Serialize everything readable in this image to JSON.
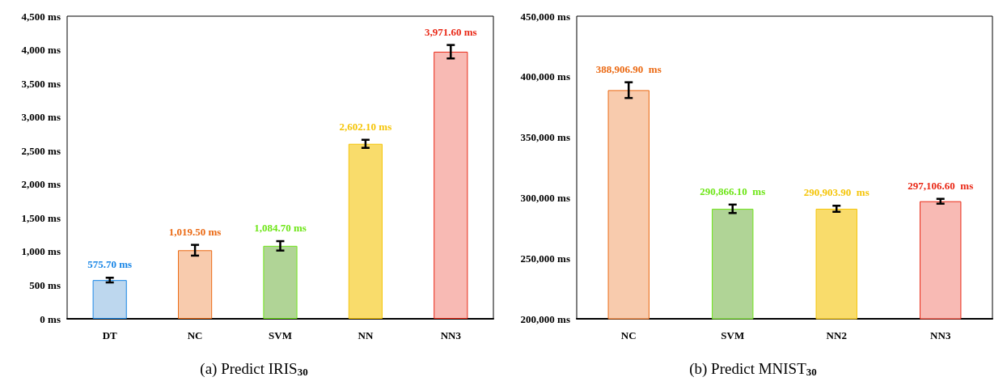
{
  "chart_data": [
    {
      "type": "bar",
      "title": "(a) Predict IRIS$_{30}$",
      "categories": [
        "DT",
        "NC",
        "SVM",
        "NN",
        "NN3"
      ],
      "values": [
        575.7,
        1019.5,
        1084.7,
        2602.1,
        3971.6
      ],
      "colors": [
        "#bdd7ee",
        "#f8cbad",
        "#b0d496",
        "#f9dc6b",
        "#f8bab4"
      ],
      "errors": [
        35,
        80,
        70,
        60,
        100
      ],
      "value_labels": [
        "575.70 ms",
        "1,019.50 ms",
        "1,084.70 ms",
        "2,602.10 ms",
        "3,971.60 ms"
      ],
      "ylim": [
        0,
        4500
      ],
      "yticks": [
        {
          "value": 0,
          "label": "0 ms"
        },
        {
          "value": 500,
          "label": "500 ms"
        },
        {
          "value": 1000,
          "label": "1,000 ms"
        },
        {
          "value": 1500,
          "label": "1,500 ms"
        },
        {
          "value": 2000,
          "label": "2,000 ms"
        },
        {
          "value": 2500,
          "label": "2,500 ms"
        },
        {
          "value": 3000,
          "label": "3,000 ms"
        },
        {
          "value": 3500,
          "label": "3,500 ms"
        },
        {
          "value": 4000,
          "label": "4,000 ms"
        },
        {
          "value": 4500,
          "label": "4,500 ms"
        }
      ],
      "grid": false
    },
    {
      "type": "bar",
      "title": "(b) Predict MNIST$_{30}$",
      "categories": [
        "NC",
        "SVM",
        "NN2",
        "NN3"
      ],
      "values": [
        388906.9,
        290866.1,
        290903.9,
        297106.6
      ],
      "colors": [
        "#f8cbad",
        "#b0d496",
        "#f9dc6b",
        "#f8bab4"
      ],
      "errors": [
        6500,
        3500,
        2500,
        2000
      ],
      "value_labels": [
        "388,906.90  ms",
        "290,866.10  ms",
        "290,903.90  ms",
        "297,106.60  ms"
      ],
      "ylim": [
        200000,
        450000
      ],
      "yticks": [
        {
          "value": 200000,
          "label": "200,000 ms"
        },
        {
          "value": 250000,
          "label": "250,000 ms"
        },
        {
          "value": 300000,
          "label": "300,000 ms"
        },
        {
          "value": 350000,
          "label": "350,000 ms"
        },
        {
          "value": 400000,
          "label": "400,000 ms"
        },
        {
          "value": 450000,
          "label": "450,000 ms"
        }
      ],
      "grid": false
    }
  ]
}
